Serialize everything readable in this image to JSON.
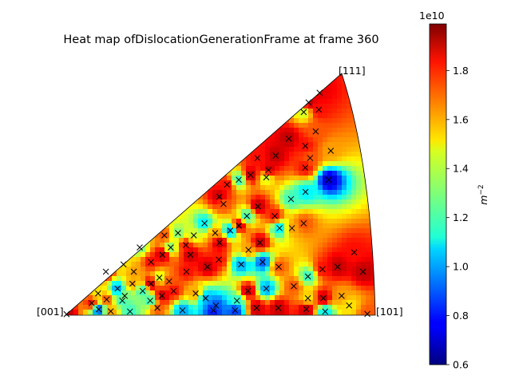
{
  "chart_data": {
    "type": "heatmap",
    "title": "Heat map ofDislocationGenerationFrame at frame 360",
    "corner_labels": {
      "origin": "[001]",
      "right": "[101]",
      "top": "[111]"
    },
    "colorbar": {
      "colormap": "jet",
      "offset_label": "1e10",
      "label": "m",
      "label_exponent": "−2",
      "ticks": [
        "0.6",
        "0.8",
        "1.0",
        "1.2",
        "1.4",
        "1.6",
        "1.8"
      ],
      "tick_values": [
        0.6,
        0.8,
        1.0,
        1.2,
        1.4,
        1.6,
        1.8
      ],
      "range": [
        0.6,
        1.99
      ]
    },
    "marker": "x",
    "points": [
      [
        0.004,
        0.004,
        1.9
      ],
      [
        0.11,
        0.024,
        0.9
      ],
      [
        0.148,
        0.016,
        1.6
      ],
      [
        0.21,
        0.015,
        1.2
      ],
      [
        0.3,
        0.03,
        1.7
      ],
      [
        0.38,
        0.02,
        1.0
      ],
      [
        0.48,
        0.02,
        0.8
      ],
      [
        0.49,
        0.04,
        0.9
      ],
      [
        0.55,
        0.02,
        0.85
      ],
      [
        0.62,
        0.03,
        1.9
      ],
      [
        0.69,
        0.03,
        1.9
      ],
      [
        0.78,
        0.025,
        1.9
      ],
      [
        0.84,
        0.015,
        1.1
      ],
      [
        0.92,
        0.04,
        1.5
      ],
      [
        0.975,
        0.005,
        1.7
      ],
      [
        0.09,
        0.05,
        1.8
      ],
      [
        0.14,
        0.065,
        1.7
      ],
      [
        0.19,
        0.06,
        1.2
      ],
      [
        0.2,
        0.08,
        1.3
      ],
      [
        0.115,
        0.09,
        1.5
      ],
      [
        0.28,
        0.06,
        1.2
      ],
      [
        0.32,
        0.08,
        1.9
      ],
      [
        0.36,
        0.1,
        1.8
      ],
      [
        0.43,
        0.09,
        1.6
      ],
      [
        0.46,
        0.07,
        1.0
      ],
      [
        0.56,
        0.06,
        1.2
      ],
      [
        0.6,
        0.1,
        1.9
      ],
      [
        0.66,
        0.11,
        1.0
      ],
      [
        0.75,
        0.12,
        1.7
      ],
      [
        0.79,
        0.07,
        1.5
      ],
      [
        0.84,
        0.07,
        1.9
      ],
      [
        0.9,
        0.08,
        1.6
      ],
      [
        0.18,
        0.11,
        1.0
      ],
      [
        0.23,
        0.13,
        1.6
      ],
      [
        0.26,
        0.1,
        1.2
      ],
      [
        0.29,
        0.13,
        1.9
      ],
      [
        0.32,
        0.155,
        1.4
      ],
      [
        0.35,
        0.14,
        1.7
      ],
      [
        0.41,
        0.18,
        1.8
      ],
      [
        0.48,
        0.2,
        1.9
      ],
      [
        0.52,
        0.23,
        1.8
      ],
      [
        0.59,
        0.21,
        1.0
      ],
      [
        0.66,
        0.22,
        0.9
      ],
      [
        0.71,
        0.2,
        1.7
      ],
      [
        0.8,
        0.16,
        1.2
      ],
      [
        0.85,
        0.19,
        1.8
      ],
      [
        0.9,
        0.2,
        1.9
      ],
      [
        0.96,
        0.26,
        1.8
      ],
      [
        0.98,
        0.18,
        1.9
      ],
      [
        0.43,
        0.25,
        1.9
      ],
      [
        0.37,
        0.28,
        1.3
      ],
      [
        0.42,
        0.29,
        1.8
      ],
      [
        0.45,
        0.33,
        1.4
      ],
      [
        0.49,
        0.38,
        1.1
      ],
      [
        0.52,
        0.34,
        1.6
      ],
      [
        0.57,
        0.35,
        1.0
      ],
      [
        0.6,
        0.37,
        1.9
      ],
      [
        0.63,
        0.41,
        1.2
      ],
      [
        0.67,
        0.45,
        1.9
      ],
      [
        0.72,
        0.41,
        1.8
      ],
      [
        0.77,
        0.36,
        1.6
      ],
      [
        0.81,
        0.38,
        1.7
      ],
      [
        0.66,
        0.3,
        1.9
      ],
      [
        0.62,
        0.27,
        1.6
      ],
      [
        0.4,
        0.34,
        1.3
      ],
      [
        0.355,
        0.33,
        1.7
      ],
      [
        0.53,
        0.3,
        1.9
      ],
      [
        0.55,
        0.49,
        1.9
      ],
      [
        0.58,
        0.54,
        1.8
      ],
      [
        0.62,
        0.56,
        1.2
      ],
      [
        0.66,
        0.58,
        1.9
      ],
      [
        0.71,
        0.57,
        1.4
      ],
      [
        0.72,
        0.6,
        1.9
      ],
      [
        0.69,
        0.65,
        1.8
      ],
      [
        0.78,
        0.48,
        1.2
      ],
      [
        0.83,
        0.51,
        1.1
      ],
      [
        0.84,
        0.61,
        1.8
      ],
      [
        0.86,
        0.65,
        1.7
      ],
      [
        0.91,
        0.56,
        0.7
      ],
      [
        0.93,
        0.68,
        1.6
      ],
      [
        0.89,
        0.76,
        1.7
      ],
      [
        0.91,
        0.85,
        1.8
      ],
      [
        0.92,
        0.92,
        1.85
      ],
      [
        0.88,
        0.88,
        1.9
      ],
      [
        0.86,
        0.84,
        1.4
      ],
      [
        0.85,
        0.7,
        1.8
      ],
      [
        0.56,
        0.46,
        1.7
      ],
      [
        0.73,
        0.36,
        1.1
      ],
      [
        0.15,
        0.18,
        1.9
      ],
      [
        0.21,
        0.21,
        1.5
      ],
      [
        0.24,
        0.18,
        1.6
      ],
      [
        0.3,
        0.22,
        1.8
      ],
      [
        0.34,
        0.25,
        1.9
      ],
      [
        0.27,
        0.28,
        1.3
      ],
      [
        0.75,
        0.66,
        1.9
      ],
      [
        0.8,
        0.73,
        1.9
      ]
    ]
  }
}
